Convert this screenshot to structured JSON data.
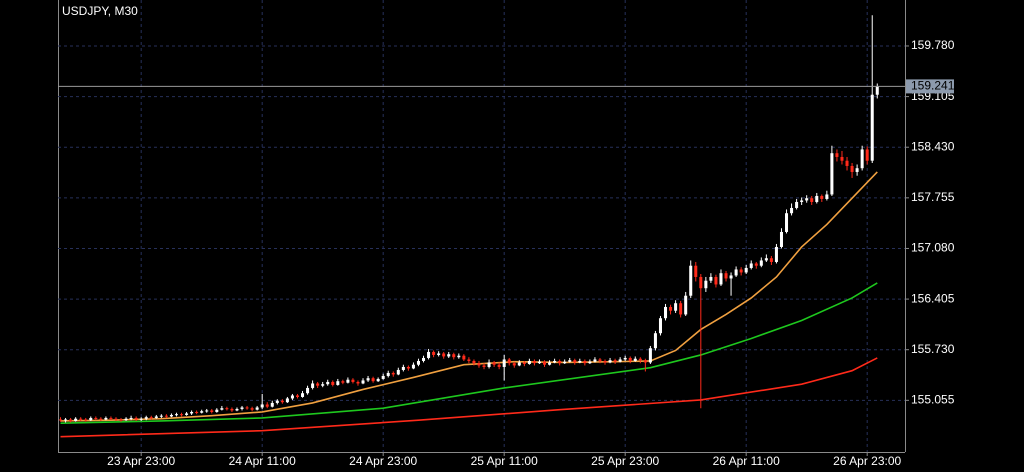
{
  "chart_data": {
    "type": "candlestick",
    "title": "USDJPY, M30",
    "up_color": "#ffffff",
    "down_color": "#ff2a1a",
    "grid": true,
    "grid_color": "#27305a",
    "ylim": [
      154.366,
      160.393
    ],
    "yticks": [
      {
        "value": 159.78,
        "label": "159.780"
      },
      159.105,
      {
        "value": 158.43,
        "label": "158.430"
      },
      157.755,
      {
        "value": 157.08,
        "label": "157.080"
      },
      156.405,
      {
        "value": 155.73,
        "label": "155.730"
      },
      155.055
    ],
    "xlim": [
      -0.5,
      167.5
    ],
    "xticks": [
      {
        "value": 16,
        "label": "23 Apr 23:00"
      },
      {
        "value": 40,
        "label": "24 Apr 11:00"
      },
      {
        "value": 64,
        "label": "24 Apr 23:00"
      },
      {
        "value": 88,
        "label": "25 Apr 11:00"
      },
      {
        "value": 112,
        "label": "25 Apr 23:00"
      },
      {
        "value": 136,
        "label": "26 Apr 11:00"
      },
      {
        "value": 160,
        "label": "26 Apr 23:00"
      }
    ],
    "last_price": 159.241,
    "ohlc": [
      [
        154.8,
        154.83,
        154.77,
        154.79
      ],
      [
        154.79,
        154.82,
        154.76,
        154.8
      ],
      [
        154.8,
        154.82,
        154.76,
        154.78
      ],
      [
        154.78,
        154.83,
        154.77,
        154.81
      ],
      [
        154.81,
        154.83,
        154.78,
        154.8
      ],
      [
        154.8,
        154.82,
        154.77,
        154.79
      ],
      [
        154.79,
        154.84,
        154.78,
        154.82
      ],
      [
        154.82,
        154.84,
        154.79,
        154.81
      ],
      [
        154.81,
        154.83,
        154.78,
        154.8
      ],
      [
        154.8,
        154.84,
        154.79,
        154.82
      ],
      [
        154.82,
        154.84,
        154.79,
        154.81
      ],
      [
        154.81,
        154.83,
        154.78,
        154.8
      ],
      [
        154.8,
        154.82,
        154.77,
        154.79
      ],
      [
        154.79,
        154.83,
        154.78,
        154.81
      ],
      [
        154.81,
        154.85,
        154.79,
        154.82
      ],
      [
        154.82,
        154.84,
        154.78,
        154.8
      ],
      [
        154.8,
        154.83,
        154.78,
        154.81
      ],
      [
        154.81,
        154.85,
        154.79,
        154.83
      ],
      [
        154.83,
        154.85,
        154.8,
        154.82
      ],
      [
        154.82,
        154.86,
        154.81,
        154.84
      ],
      [
        154.84,
        154.87,
        154.82,
        154.85
      ],
      [
        154.85,
        154.87,
        154.82,
        154.84
      ],
      [
        154.84,
        154.88,
        154.83,
        154.86
      ],
      [
        154.86,
        154.89,
        154.84,
        154.87
      ],
      [
        154.87,
        154.89,
        154.84,
        154.86
      ],
      [
        154.86,
        154.9,
        154.85,
        154.88
      ],
      [
        154.88,
        154.92,
        154.86,
        154.9
      ],
      [
        154.9,
        154.92,
        154.87,
        154.89
      ],
      [
        154.89,
        154.93,
        154.88,
        154.91
      ],
      [
        154.91,
        154.94,
        154.89,
        154.92
      ],
      [
        154.92,
        154.94,
        154.88,
        154.9
      ],
      [
        154.9,
        154.95,
        154.89,
        154.93
      ],
      [
        154.93,
        154.98,
        154.92,
        154.95
      ],
      [
        154.95,
        154.97,
        154.92,
        154.94
      ],
      [
        154.94,
        154.96,
        154.9,
        154.92
      ],
      [
        154.92,
        154.96,
        154.91,
        154.94
      ],
      [
        154.94,
        154.98,
        154.92,
        154.96
      ],
      [
        154.96,
        154.98,
        154.93,
        154.95
      ],
      [
        154.95,
        154.97,
        154.91,
        154.93
      ],
      [
        154.93,
        154.98,
        154.92,
        154.96
      ],
      [
        154.96,
        155.14,
        154.94,
        155.0
      ],
      [
        155.0,
        155.03,
        154.95,
        154.97
      ],
      [
        154.97,
        155.05,
        154.96,
        155.02
      ],
      [
        155.02,
        155.07,
        155.0,
        155.05
      ],
      [
        155.05,
        155.07,
        155.01,
        155.03
      ],
      [
        155.03,
        155.1,
        155.02,
        155.08
      ],
      [
        155.08,
        155.14,
        155.06,
        155.12
      ],
      [
        155.12,
        155.14,
        155.08,
        155.1
      ],
      [
        155.1,
        155.18,
        155.09,
        155.15
      ],
      [
        155.15,
        155.25,
        155.13,
        155.22
      ],
      [
        155.22,
        155.32,
        155.2,
        155.28
      ],
      [
        155.28,
        155.3,
        155.22,
        155.25
      ],
      [
        155.25,
        155.3,
        155.23,
        155.27
      ],
      [
        155.27,
        155.33,
        155.25,
        155.3
      ],
      [
        155.3,
        155.32,
        155.24,
        155.26
      ],
      [
        155.26,
        155.34,
        155.25,
        155.31
      ],
      [
        155.31,
        155.33,
        155.27,
        155.29
      ],
      [
        155.29,
        155.36,
        155.28,
        155.33
      ],
      [
        155.33,
        155.35,
        155.28,
        155.3
      ],
      [
        155.3,
        155.32,
        155.25,
        155.28
      ],
      [
        155.28,
        155.35,
        155.27,
        155.32
      ],
      [
        155.32,
        155.38,
        155.3,
        155.35
      ],
      [
        155.35,
        155.37,
        155.29,
        155.31
      ],
      [
        155.31,
        155.36,
        155.3,
        155.34
      ],
      [
        155.34,
        155.41,
        155.33,
        155.38
      ],
      [
        155.38,
        155.45,
        155.36,
        155.42
      ],
      [
        155.42,
        155.44,
        155.37,
        155.4
      ],
      [
        155.4,
        155.49,
        155.39,
        155.46
      ],
      [
        155.46,
        155.53,
        155.44,
        155.5
      ],
      [
        155.5,
        155.52,
        155.45,
        155.48
      ],
      [
        155.48,
        155.56,
        155.47,
        155.53
      ],
      [
        155.53,
        155.61,
        155.51,
        155.58
      ],
      [
        155.58,
        155.65,
        155.56,
        155.62
      ],
      [
        155.62,
        155.74,
        155.6,
        155.7
      ],
      [
        155.7,
        155.72,
        155.63,
        155.66
      ],
      [
        155.66,
        155.71,
        155.64,
        155.68
      ],
      [
        155.68,
        155.7,
        155.61,
        155.64
      ],
      [
        155.64,
        155.7,
        155.62,
        155.67
      ],
      [
        155.67,
        155.69,
        155.6,
        155.63
      ],
      [
        155.63,
        155.68,
        155.61,
        155.65
      ],
      [
        155.65,
        155.67,
        155.58,
        155.6
      ],
      [
        155.6,
        155.63,
        155.55,
        155.58
      ],
      [
        155.58,
        155.6,
        155.52,
        155.55
      ],
      [
        155.55,
        155.58,
        155.49,
        155.52
      ],
      [
        155.52,
        155.55,
        155.47,
        155.5
      ],
      [
        155.5,
        155.6,
        155.48,
        155.56
      ],
      [
        155.56,
        155.58,
        155.5,
        155.53
      ],
      [
        155.53,
        155.56,
        155.47,
        155.5
      ],
      [
        155.5,
        155.66,
        155.32,
        155.6
      ],
      [
        155.6,
        155.62,
        155.52,
        155.55
      ],
      [
        155.55,
        155.57,
        155.49,
        155.52
      ],
      [
        155.52,
        155.59,
        155.51,
        155.56
      ],
      [
        155.56,
        155.58,
        155.51,
        155.54
      ],
      [
        155.54,
        155.61,
        155.53,
        155.58
      ],
      [
        155.58,
        155.6,
        155.52,
        155.55
      ],
      [
        155.55,
        155.6,
        155.54,
        155.57
      ],
      [
        155.57,
        155.59,
        155.5,
        155.53
      ],
      [
        155.53,
        155.59,
        155.52,
        155.56
      ],
      [
        155.56,
        155.61,
        155.55,
        155.58
      ],
      [
        155.58,
        155.6,
        155.52,
        155.55
      ],
      [
        155.55,
        155.6,
        155.54,
        155.57
      ],
      [
        155.57,
        155.62,
        155.56,
        155.59
      ],
      [
        155.59,
        155.61,
        155.53,
        155.56
      ],
      [
        155.56,
        155.61,
        155.55,
        155.58
      ],
      [
        155.58,
        155.6,
        155.52,
        155.55
      ],
      [
        155.55,
        155.6,
        155.54,
        155.57
      ],
      [
        155.57,
        155.63,
        155.56,
        155.6
      ],
      [
        155.6,
        155.62,
        155.55,
        155.58
      ],
      [
        155.58,
        155.6,
        155.53,
        155.56
      ],
      [
        155.56,
        155.62,
        155.55,
        155.59
      ],
      [
        155.59,
        155.61,
        155.54,
        155.57
      ],
      [
        155.57,
        155.63,
        155.56,
        155.6
      ],
      [
        155.6,
        155.65,
        155.58,
        155.62
      ],
      [
        155.62,
        155.64,
        155.55,
        155.58
      ],
      [
        155.58,
        155.64,
        155.57,
        155.61
      ],
      [
        155.61,
        155.63,
        155.55,
        155.59
      ],
      [
        155.59,
        155.61,
        155.44,
        155.56
      ],
      [
        155.56,
        155.78,
        155.54,
        155.75
      ],
      [
        155.75,
        155.98,
        155.72,
        155.95
      ],
      [
        155.95,
        156.18,
        155.92,
        156.15
      ],
      [
        156.15,
        156.34,
        156.12,
        156.3
      ],
      [
        156.3,
        156.33,
        156.2,
        156.25
      ],
      [
        156.25,
        156.39,
        156.22,
        156.35
      ],
      [
        156.35,
        156.38,
        156.16,
        156.2
      ],
      [
        156.2,
        156.5,
        156.18,
        156.45
      ],
      [
        156.45,
        156.92,
        156.42,
        156.85
      ],
      [
        156.85,
        156.9,
        156.64,
        156.7
      ],
      [
        156.7,
        156.74,
        154.95,
        156.55
      ],
      [
        156.55,
        156.7,
        156.5,
        156.65
      ],
      [
        156.65,
        156.75,
        156.62,
        156.7
      ],
      [
        156.7,
        156.73,
        156.56,
        156.6
      ],
      [
        156.6,
        156.8,
        156.58,
        156.75
      ],
      [
        156.75,
        156.78,
        156.64,
        156.68
      ],
      [
        156.68,
        156.76,
        156.45,
        156.72
      ],
      [
        156.72,
        156.84,
        156.7,
        156.8
      ],
      [
        156.8,
        156.83,
        156.72,
        156.76
      ],
      [
        156.76,
        156.86,
        156.74,
        156.82
      ],
      [
        156.82,
        156.92,
        156.8,
        156.88
      ],
      [
        156.88,
        156.9,
        156.81,
        156.85
      ],
      [
        156.85,
        156.96,
        156.83,
        156.92
      ],
      [
        156.92,
        157.0,
        156.9,
        156.95
      ],
      [
        156.95,
        156.98,
        156.86,
        156.9
      ],
      [
        156.9,
        157.14,
        156.88,
        157.1
      ],
      [
        157.1,
        157.35,
        157.08,
        157.3
      ],
      [
        157.3,
        157.6,
        157.28,
        157.55
      ],
      [
        157.55,
        157.68,
        157.52,
        157.62
      ],
      [
        157.62,
        157.74,
        157.6,
        157.7
      ],
      [
        157.7,
        157.76,
        157.66,
        157.72
      ],
      [
        157.72,
        157.79,
        157.69,
        157.75
      ],
      [
        157.75,
        157.78,
        157.66,
        157.7
      ],
      [
        157.7,
        157.82,
        157.68,
        157.78
      ],
      [
        157.78,
        157.8,
        157.7,
        157.74
      ],
      [
        157.74,
        157.85,
        157.72,
        157.8
      ],
      [
        157.8,
        158.45,
        157.78,
        158.35
      ],
      [
        158.35,
        158.4,
        158.24,
        158.3
      ],
      [
        158.3,
        158.38,
        158.2,
        158.25
      ],
      [
        158.25,
        158.3,
        158.12,
        158.18
      ],
      [
        158.18,
        158.22,
        158.02,
        158.1
      ],
      [
        158.1,
        158.2,
        158.05,
        158.15
      ],
      [
        158.15,
        158.45,
        158.12,
        158.4
      ],
      [
        158.4,
        158.44,
        158.2,
        158.25
      ],
      [
        158.25,
        160.19,
        158.22,
        159.13
      ],
      [
        159.13,
        159.28,
        159.08,
        159.241
      ]
    ],
    "lines": [
      {
        "color": "#f0a040",
        "x": [
          0,
          10,
          20,
          30,
          40,
          50,
          60,
          70,
          80,
          90,
          100,
          110,
          117,
          122,
          127,
          132,
          137,
          142,
          147,
          152,
          157,
          162
        ],
        "values": [
          154.78,
          154.79,
          154.81,
          154.85,
          154.9,
          155.02,
          155.2,
          155.36,
          155.53,
          155.57,
          155.56,
          155.57,
          155.58,
          155.72,
          156.0,
          156.2,
          156.42,
          156.7,
          157.1,
          157.4,
          157.75,
          158.1
        ]
      },
      {
        "color": "#1ec81e",
        "x": [
          0,
          20,
          40,
          64,
          88,
          117,
          127,
          137,
          147,
          157,
          162
        ],
        "values": [
          154.75,
          154.78,
          154.82,
          154.95,
          155.22,
          155.49,
          155.66,
          155.88,
          156.12,
          156.42,
          156.62
        ]
      },
      {
        "color": "#ff2a1a",
        "x": [
          0,
          40,
          71,
          99,
          127,
          147,
          157,
          162
        ],
        "values": [
          154.57,
          154.65,
          154.79,
          154.93,
          155.06,
          155.27,
          155.45,
          155.62
        ]
      }
    ]
  }
}
